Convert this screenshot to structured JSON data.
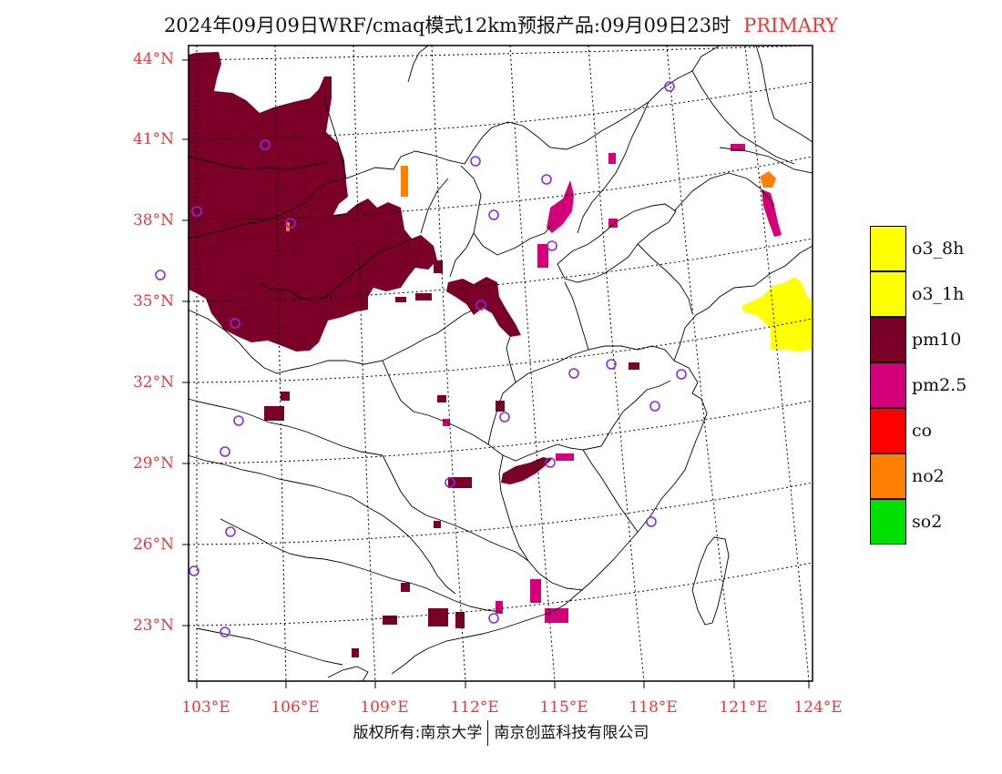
{
  "title": {
    "main": "2024年09月09日WRF/cmaq模式12km预报产品:09月09日23时",
    "tag": "PRIMARY",
    "tag_color": "#e03c3c"
  },
  "axes": {
    "latitude_labels": [
      "44°N",
      "41°N",
      "38°N",
      "35°N",
      "32°N",
      "29°N",
      "26°N",
      "23°N"
    ],
    "longitude_labels": [
      "103°E",
      "106°E",
      "109°E",
      "112°E",
      "115°E",
      "118°E",
      "121°E",
      "124°E"
    ],
    "label_color": "#e23b3b"
  },
  "legend": {
    "items": [
      {
        "label": "o3_8h",
        "color": "#ffff00"
      },
      {
        "label": "o3_1h",
        "color": "#ffff00"
      },
      {
        "label": "pm10",
        "color": "#7a0028"
      },
      {
        "label": "pm2.5",
        "color": "#d4007a"
      },
      {
        "label": "co",
        "color": "#ff0000"
      },
      {
        "label": "no2",
        "color": "#ff7f00"
      },
      {
        "label": "so2",
        "color": "#00e000"
      }
    ]
  },
  "footer": {
    "left": "版权所有:南京大学",
    "right": "南京创蓝科技有限公司"
  },
  "colors": {
    "pm10": "#7a0028",
    "pm25": "#d4007a",
    "o3": "#ffff00",
    "no2": "#ff7f00",
    "station": "#8a2be2"
  }
}
